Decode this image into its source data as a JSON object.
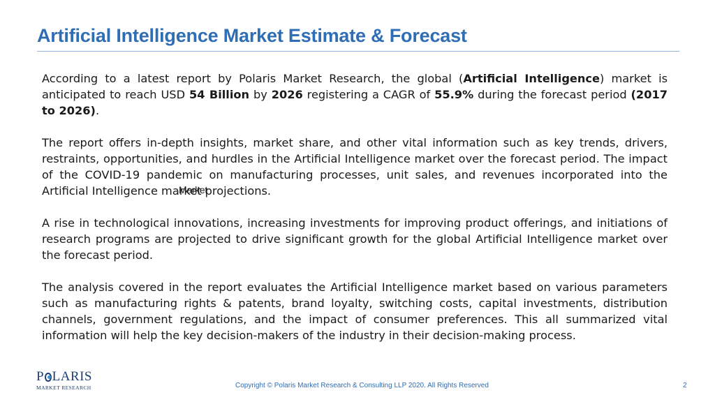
{
  "slide": {
    "title": "Artificial Intelligence Market Estimate & Forecast"
  },
  "paragraphs": {
    "p1": {
      "a": "According to a latest report by Polaris Market Research, the global (",
      "b_market": "Artificial Intelligence",
      "c": ") market is anticipated to reach USD ",
      "d_value": "54 Billion",
      "e": " by ",
      "f_year": "2026",
      "g": "  registering a CAGR of ",
      "h_cagr": "55.9%",
      "i": " during the  forecast period ",
      "j_period": "(2017 to 2026)",
      "k": "."
    },
    "p2": "The report offers in-depth insights, market share, and other vital information such as key trends, drivers, restraints, opportunities, and hurdles in the Artificial Intelligence market over the forecast period. The impact of the COVID-19 pandemic on manufacturing processes, unit sales, and revenues incorporated into the  Artificial Intelligence market projections.",
    "p2_overlap": "Market",
    "p3": "A rise in technological innovations, increasing investments for improving product offerings, and initiations of research programs are projected to drive significant growth for the global Artificial Intelligence market over the forecast period.",
    "p4": "The analysis covered in the report evaluates the Artificial Intelligence market based on various parameters such as manufacturing rights & patents, brand loyalty, switching costs,  capital investments, distribution channels, government regulations, and the impact of consumer preferences. This all summarized vital information will help the key decision-makers of the industry in their decision-making process."
  },
  "logo": {
    "name_before": "P",
    "name_after": "LARIS",
    "subtitle": "MARKET RESEARCH"
  },
  "footer": {
    "copyright": "Copyright © Polaris Market Research & Consulting LLP 2020. All Rights Reserved",
    "page_number": "2"
  },
  "colors": {
    "title": "#2f6db5",
    "rule": "#8fb5de",
    "logo": "#1e3f73"
  }
}
